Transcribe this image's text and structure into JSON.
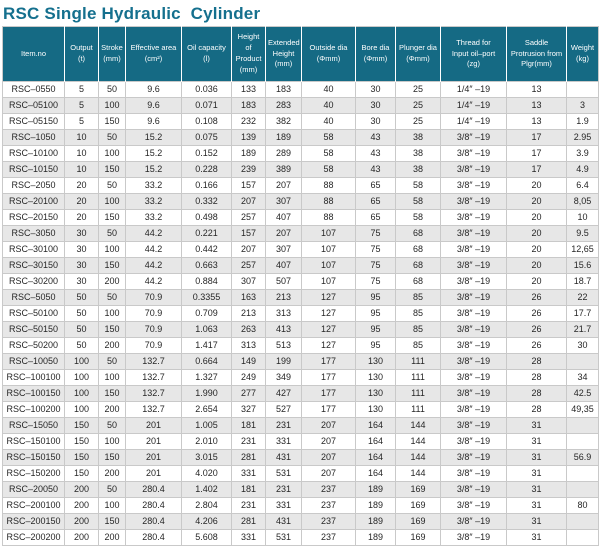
{
  "page": {
    "title": "RSC Single Hydraulic  Cylinder"
  },
  "colors": {
    "title_text": "#15708e",
    "header_background": "#156a84",
    "header_text": "#ffffff",
    "row_alt_background": "#e7e7e7",
    "row_background": "#ffffff",
    "grid_border": "#c9c9c9",
    "cell_text": "#262626"
  },
  "table": {
    "columns": [
      "Item.no",
      "Output\n(t)",
      "Stroke\n(mm)",
      "Effective area\n(cm²)",
      "Oil capacity\n(l)",
      "Height of\nProduct\n(mm)",
      "Extended\nHeight\n(mm)",
      "Outside dia\n(Φmm)",
      "Bore dia\n(Φmm)",
      "Plunger dia\n(Φmm)",
      "Thread for\nInput oil–port\n(zg)",
      "Saddle\nProtrusion from\nPlgr(mm)",
      "Weight\n(kg)"
    ],
    "rows": [
      [
        "RSC–0550",
        "5",
        "50",
        "9.6",
        "0.036",
        "133",
        "183",
        "40",
        "30",
        "25",
        "1/4″ –19",
        "13",
        ""
      ],
      [
        "RSC–05100",
        "5",
        "100",
        "9.6",
        "0.071",
        "183",
        "283",
        "40",
        "30",
        "25",
        "1/4″ –19",
        "13",
        "3"
      ],
      [
        "RSC–05150",
        "5",
        "150",
        "9.6",
        "0.108",
        "232",
        "382",
        "40",
        "30",
        "25",
        "1/4″ –19",
        "13",
        "1.9"
      ],
      [
        "RSC–1050",
        "10",
        "50",
        "15.2",
        "0.075",
        "139",
        "189",
        "58",
        "43",
        "38",
        "3/8″ –19",
        "17",
        "2.95"
      ],
      [
        "RSC–10100",
        "10",
        "100",
        "15.2",
        "0.152",
        "189",
        "289",
        "58",
        "43",
        "38",
        "3/8″ –19",
        "17",
        "3.9"
      ],
      [
        "RSC–10150",
        "10",
        "150",
        "15.2",
        "0.228",
        "239",
        "389",
        "58",
        "43",
        "38",
        "3/8″ –19",
        "17",
        "4.9"
      ],
      [
        "RSC–2050",
        "20",
        "50",
        "33.2",
        "0.166",
        "157",
        "207",
        "88",
        "65",
        "58",
        "3/8″ –19",
        "20",
        "6.4"
      ],
      [
        "RSC–20100",
        "20",
        "100",
        "33.2",
        "0.332",
        "207",
        "307",
        "88",
        "65",
        "58",
        "3/8″ –19",
        "20",
        "8,05"
      ],
      [
        "RSC–20150",
        "20",
        "150",
        "33.2",
        "0.498",
        "257",
        "407",
        "88",
        "65",
        "58",
        "3/8″ –19",
        "20",
        "10"
      ],
      [
        "RSC–3050",
        "30",
        "50",
        "44.2",
        "0.221",
        "157",
        "207",
        "107",
        "75",
        "68",
        "3/8″ –19",
        "20",
        "9.5"
      ],
      [
        "RSC–30100",
        "30",
        "100",
        "44.2",
        "0.442",
        "207",
        "307",
        "107",
        "75",
        "68",
        "3/8″ –19",
        "20",
        "12,65"
      ],
      [
        "RSC–30150",
        "30",
        "150",
        "44.2",
        "0.663",
        "257",
        "407",
        "107",
        "75",
        "68",
        "3/8″ –19",
        "20",
        "15.6"
      ],
      [
        "RSC–30200",
        "30",
        "200",
        "44.2",
        "0.884",
        "307",
        "507",
        "107",
        "75",
        "68",
        "3/8″ –19",
        "20",
        "18.7"
      ],
      [
        "RSC–5050",
        "50",
        "50",
        "70.9",
        "0.3355",
        "163",
        "213",
        "127",
        "95",
        "85",
        "3/8″ –19",
        "26",
        "22"
      ],
      [
        "RSC–50100",
        "50",
        "100",
        "70.9",
        "0.709",
        "213",
        "313",
        "127",
        "95",
        "85",
        "3/8″ –19",
        "26",
        "17.7"
      ],
      [
        "RSC–50150",
        "50",
        "150",
        "70.9",
        "1.063",
        "263",
        "413",
        "127",
        "95",
        "85",
        "3/8″ –19",
        "26",
        "21.7"
      ],
      [
        "RSC–50200",
        "50",
        "200",
        "70.9",
        "1.417",
        "313",
        "513",
        "127",
        "95",
        "85",
        "3/8″ –19",
        "26",
        "30"
      ],
      [
        "RSC–10050",
        "100",
        "50",
        "132.7",
        "0.664",
        "149",
        "199",
        "177",
        "130",
        "111",
        "3/8″ –19",
        "28",
        ""
      ],
      [
        "RSC–100100",
        "100",
        "100",
        "132.7",
        "1.327",
        "249",
        "349",
        "177",
        "130",
        "111",
        "3/8″ –19",
        "28",
        "34"
      ],
      [
        "RSC–100150",
        "100",
        "150",
        "132.7",
        "1.990",
        "277",
        "427",
        "177",
        "130",
        "111",
        "3/8″ –19",
        "28",
        "42.5"
      ],
      [
        "RSC–100200",
        "100",
        "200",
        "132.7",
        "2.654",
        "327",
        "527",
        "177",
        "130",
        "111",
        "3/8″ –19",
        "28",
        "49,35"
      ],
      [
        "RSC–15050",
        "150",
        "50",
        "201",
        "1.005",
        "181",
        "231",
        "207",
        "164",
        "144",
        "3/8″ –19",
        "31",
        ""
      ],
      [
        "RSC–150100",
        "150",
        "100",
        "201",
        "2.010",
        "231",
        "331",
        "207",
        "164",
        "144",
        "3/8″ –19",
        "31",
        ""
      ],
      [
        "RSC–150150",
        "150",
        "150",
        "201",
        "3.015",
        "281",
        "431",
        "207",
        "164",
        "144",
        "3/8″ –19",
        "31",
        "56.9"
      ],
      [
        "RSC–150200",
        "150",
        "200",
        "201",
        "4.020",
        "331",
        "531",
        "207",
        "164",
        "144",
        "3/8″ –19",
        "31",
        ""
      ],
      [
        "RSC–20050",
        "200",
        "50",
        "280.4",
        "1.402",
        "181",
        "231",
        "237",
        "189",
        "169",
        "3/8″ –19",
        "31",
        ""
      ],
      [
        "RSC–200100",
        "200",
        "100",
        "280.4",
        "2.804",
        "231",
        "331",
        "237",
        "189",
        "169",
        "3/8″ –19",
        "31",
        "80"
      ],
      [
        "RSC–200150",
        "200",
        "150",
        "280.4",
        "4.206",
        "281",
        "431",
        "237",
        "189",
        "169",
        "3/8″ –19",
        "31",
        ""
      ],
      [
        "RSC–200200",
        "200",
        "200",
        "280.4",
        "5.608",
        "331",
        "531",
        "237",
        "189",
        "169",
        "3/8″ –19",
        "31",
        ""
      ]
    ]
  }
}
